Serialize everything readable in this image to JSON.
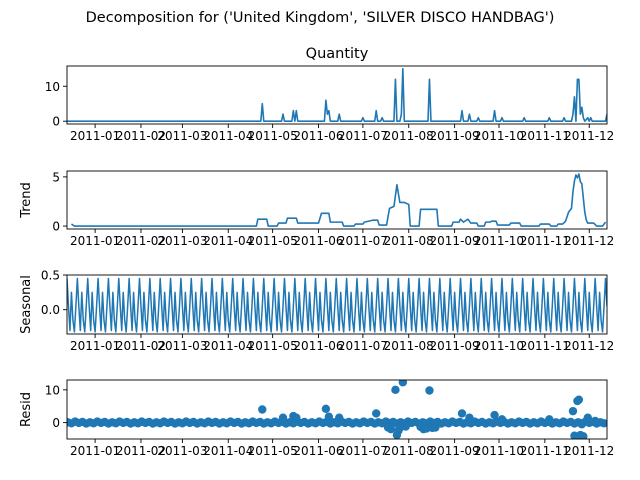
{
  "figure": {
    "suptitle": "Decomposition for ('United Kingdom', 'SILVER DISCO HANDBAG')"
  },
  "chart_data": [
    {
      "type": "line",
      "title": "Quantity",
      "ylabel": "",
      "color": "#1f77b4",
      "xlim": [
        "2010-12-13",
        "2011-12-13"
      ],
      "ylim": [
        -0.8,
        15.8
      ],
      "yticks": [
        0,
        10
      ],
      "xticks": [
        "2011-01",
        "2011-02",
        "2011-03",
        "2011-04",
        "2011-05",
        "2011-06",
        "2011-07",
        "2011-08",
        "2011-09",
        "2011-10",
        "2011-11",
        "2011-12"
      ],
      "points": [
        [
          "2010-12-13",
          0
        ],
        [
          "2011-04-23",
          0
        ],
        [
          "2011-04-24",
          5
        ],
        [
          "2011-04-25",
          0
        ],
        [
          "2011-05-07",
          0
        ],
        [
          "2011-05-08",
          2
        ],
        [
          "2011-05-09",
          0
        ],
        [
          "2011-05-14",
          0
        ],
        [
          "2011-05-15",
          3
        ],
        [
          "2011-05-16",
          0
        ],
        [
          "2011-05-17",
          3
        ],
        [
          "2011-05-18",
          0
        ],
        [
          "2011-06-05",
          0
        ],
        [
          "2011-06-06",
          6
        ],
        [
          "2011-06-07",
          2
        ],
        [
          "2011-06-08",
          3
        ],
        [
          "2011-06-09",
          0
        ],
        [
          "2011-06-14",
          0
        ],
        [
          "2011-06-15",
          2
        ],
        [
          "2011-06-16",
          0
        ],
        [
          "2011-06-30",
          0
        ],
        [
          "2011-07-01",
          1
        ],
        [
          "2011-07-02",
          0
        ],
        [
          "2011-07-09",
          0
        ],
        [
          "2011-07-10",
          3
        ],
        [
          "2011-07-11",
          0
        ],
        [
          "2011-07-13",
          0
        ],
        [
          "2011-07-14",
          1
        ],
        [
          "2011-07-15",
          0
        ],
        [
          "2011-07-22",
          0
        ],
        [
          "2011-07-23",
          12
        ],
        [
          "2011-07-24",
          0
        ],
        [
          "2011-07-26",
          0
        ],
        [
          "2011-07-27",
          2
        ],
        [
          "2011-07-28",
          15
        ],
        [
          "2011-07-29",
          0
        ],
        [
          "2011-08-14",
          0
        ],
        [
          "2011-08-15",
          12
        ],
        [
          "2011-08-16",
          0
        ],
        [
          "2011-09-05",
          0
        ],
        [
          "2011-09-06",
          3
        ],
        [
          "2011-09-07",
          0
        ],
        [
          "2011-09-10",
          0
        ],
        [
          "2011-09-11",
          2
        ],
        [
          "2011-09-12",
          0
        ],
        [
          "2011-09-16",
          0
        ],
        [
          "2011-09-17",
          1
        ],
        [
          "2011-09-18",
          0
        ],
        [
          "2011-09-27",
          0
        ],
        [
          "2011-09-28",
          3
        ],
        [
          "2011-09-29",
          0
        ],
        [
          "2011-10-02",
          0
        ],
        [
          "2011-10-03",
          1
        ],
        [
          "2011-10-04",
          0
        ],
        [
          "2011-10-17",
          0
        ],
        [
          "2011-10-18",
          1
        ],
        [
          "2011-10-19",
          0
        ],
        [
          "2011-11-03",
          0
        ],
        [
          "2011-11-04",
          1
        ],
        [
          "2011-11-05",
          0
        ],
        [
          "2011-11-13",
          0
        ],
        [
          "2011-11-14",
          1
        ],
        [
          "2011-11-15",
          0
        ],
        [
          "2011-11-19",
          0
        ],
        [
          "2011-11-20",
          2
        ],
        [
          "2011-11-21",
          7
        ],
        [
          "2011-11-22",
          0
        ],
        [
          "2011-11-23",
          12
        ],
        [
          "2011-11-24",
          12
        ],
        [
          "2011-11-25",
          2
        ],
        [
          "2011-11-26",
          4
        ],
        [
          "2011-11-27",
          1
        ],
        [
          "2011-11-28",
          0
        ],
        [
          "2011-11-30",
          1
        ],
        [
          "2011-12-01",
          0
        ],
        [
          "2011-12-02",
          1
        ],
        [
          "2011-12-03",
          0
        ],
        [
          "2011-12-12",
          0
        ],
        [
          "2011-12-13",
          2
        ]
      ]
    },
    {
      "type": "line",
      "title": "",
      "ylabel": "Trend",
      "color": "#1f77b4",
      "xlim": [
        "2010-12-13",
        "2011-12-13"
      ],
      "ylim": [
        -0.3,
        5.6
      ],
      "yticks": [
        0,
        5
      ],
      "xticks": [
        "2011-01",
        "2011-02",
        "2011-03",
        "2011-04",
        "2011-05",
        "2011-06",
        "2011-07",
        "2011-08",
        "2011-09",
        "2011-10",
        "2011-11",
        "2011-12"
      ],
      "points": [
        [
          "2010-12-16",
          0.2
        ],
        [
          "2010-12-18",
          0
        ],
        [
          "2011-04-20",
          0
        ],
        [
          "2011-04-21",
          0.7
        ],
        [
          "2011-04-27",
          0.7
        ],
        [
          "2011-04-28",
          0
        ],
        [
          "2011-05-04",
          0
        ],
        [
          "2011-05-05",
          0.3
        ],
        [
          "2011-05-10",
          0.3
        ],
        [
          "2011-05-11",
          0.8
        ],
        [
          "2011-05-17",
          0.8
        ],
        [
          "2011-05-18",
          0.3
        ],
        [
          "2011-06-01",
          0.3
        ],
        [
          "2011-06-03",
          1.3
        ],
        [
          "2011-06-08",
          1.3
        ],
        [
          "2011-06-09",
          0.4
        ],
        [
          "2011-06-17",
          0.4
        ],
        [
          "2011-06-18",
          0
        ],
        [
          "2011-06-25",
          0
        ],
        [
          "2011-06-26",
          0.2
        ],
        [
          "2011-07-01",
          0.2
        ],
        [
          "2011-07-02",
          0.4
        ],
        [
          "2011-07-08",
          0.6
        ],
        [
          "2011-07-11",
          0.6
        ],
        [
          "2011-07-12",
          0.1
        ],
        [
          "2011-07-17",
          0.1
        ],
        [
          "2011-07-19",
          1.8
        ],
        [
          "2011-07-22",
          2.0
        ],
        [
          "2011-07-24",
          4.2
        ],
        [
          "2011-07-26",
          2.4
        ],
        [
          "2011-07-29",
          2.4
        ],
        [
          "2011-08-01",
          2.2
        ],
        [
          "2011-08-02",
          0
        ],
        [
          "2011-08-08",
          0
        ],
        [
          "2011-08-09",
          1.7
        ],
        [
          "2011-08-20",
          1.7
        ],
        [
          "2011-08-21",
          0
        ],
        [
          "2011-08-30",
          0
        ],
        [
          "2011-08-31",
          0.4
        ],
        [
          "2011-09-04",
          0.4
        ],
        [
          "2011-09-05",
          0.7
        ],
        [
          "2011-09-07",
          0.4
        ],
        [
          "2011-09-10",
          0.7
        ],
        [
          "2011-09-12",
          0.3
        ],
        [
          "2011-09-16",
          0.3
        ],
        [
          "2011-09-17",
          0
        ],
        [
          "2011-09-21",
          0
        ],
        [
          "2011-09-22",
          0.4
        ],
        [
          "2011-09-25",
          0.4
        ],
        [
          "2011-09-26",
          0.5
        ],
        [
          "2011-09-29",
          0.5
        ],
        [
          "2011-09-30",
          0.1
        ],
        [
          "2011-10-08",
          0.1
        ],
        [
          "2011-10-09",
          0.3
        ],
        [
          "2011-10-15",
          0.3
        ],
        [
          "2011-10-16",
          0
        ],
        [
          "2011-10-28",
          0
        ],
        [
          "2011-10-29",
          0.2
        ],
        [
          "2011-11-04",
          0.2
        ],
        [
          "2011-11-05",
          0
        ],
        [
          "2011-11-09",
          0
        ],
        [
          "2011-11-10",
          0.2
        ],
        [
          "2011-11-13",
          0.2
        ],
        [
          "2011-11-15",
          0.5
        ],
        [
          "2011-11-17",
          1.4
        ],
        [
          "2011-11-19",
          1.8
        ],
        [
          "2011-11-20",
          3.5
        ],
        [
          "2011-11-21",
          4.6
        ],
        [
          "2011-11-22",
          5.2
        ],
        [
          "2011-11-23",
          4.9
        ],
        [
          "2011-11-24",
          5.3
        ],
        [
          "2011-11-25",
          4.5
        ],
        [
          "2011-11-26",
          4.3
        ],
        [
          "2011-11-28",
          1.4
        ],
        [
          "2011-11-29",
          0.6
        ],
        [
          "2011-11-30",
          0.3
        ],
        [
          "2011-12-04",
          0.3
        ],
        [
          "2011-12-06",
          0
        ],
        [
          "2011-12-10",
          0
        ],
        [
          "2011-12-12",
          0.4
        ]
      ]
    },
    {
      "type": "line",
      "title": "",
      "ylabel": "Seasonal",
      "color": "#1f77b4",
      "xlim": [
        "2010-12-13",
        "2011-12-13"
      ],
      "ylim": [
        -0.35,
        0.5
      ],
      "yticks": [
        -0.0,
        0.5
      ],
      "ytick_labels": [
        "0.0",
        "0.5"
      ],
      "xticks": [
        "2011-01",
        "2011-02",
        "2011-03",
        "2011-04",
        "2011-05",
        "2011-06",
        "2011-07",
        "2011-08",
        "2011-09",
        "2011-10",
        "2011-11",
        "2011-12"
      ],
      "period_days": 7,
      "weekly_pattern": [
        0.45,
        0.05,
        -0.3,
        0.25,
        -0.15,
        -0.32,
        0.05
      ],
      "x_start": "2010-12-13",
      "x_end": "2011-12-13"
    },
    {
      "type": "scatter",
      "title": "",
      "ylabel": "Resid",
      "color": "#1f77b4",
      "xlim": [
        "2010-12-13",
        "2011-12-13"
      ],
      "ylim": [
        -5,
        13
      ],
      "yticks": [
        0,
        10
      ],
      "xticks": [
        "2011-01",
        "2011-02",
        "2011-03",
        "2011-04",
        "2011-05",
        "2011-06",
        "2011-07",
        "2011-08",
        "2011-09",
        "2011-10",
        "2011-11",
        "2011-12"
      ],
      "baseline": {
        "step_days": 2.5,
        "values": [
          0.1,
          -0.2,
          0.3,
          -0.1,
          0.2,
          -0.3
        ]
      },
      "points": [
        [
          "2011-04-24",
          4
        ],
        [
          "2011-05-08",
          1.5
        ],
        [
          "2011-05-15",
          2
        ],
        [
          "2011-05-17",
          1.5
        ],
        [
          "2011-06-06",
          4.2
        ],
        [
          "2011-06-08",
          1.8
        ],
        [
          "2011-06-15",
          1.5
        ],
        [
          "2011-07-10",
          2.8
        ],
        [
          "2011-07-18",
          -1.5
        ],
        [
          "2011-07-20",
          -2
        ],
        [
          "2011-07-23",
          10
        ],
        [
          "2011-07-24",
          -3.8
        ],
        [
          "2011-07-25",
          -2.5
        ],
        [
          "2011-07-26",
          -1.6
        ],
        [
          "2011-07-28",
          12.3
        ],
        [
          "2011-07-30",
          -1.2
        ],
        [
          "2011-08-09",
          -1.3
        ],
        [
          "2011-08-11",
          -2
        ],
        [
          "2011-08-13",
          -1.8
        ],
        [
          "2011-08-15",
          9.8
        ],
        [
          "2011-08-17",
          -1.6
        ],
        [
          "2011-08-19",
          -1.5
        ],
        [
          "2011-09-06",
          2.8
        ],
        [
          "2011-09-11",
          1.5
        ],
        [
          "2011-09-28",
          2.3
        ],
        [
          "2011-10-03",
          1
        ],
        [
          "2011-11-04",
          1
        ],
        [
          "2011-11-20",
          3.5
        ],
        [
          "2011-11-21",
          -4
        ],
        [
          "2011-11-22",
          -4.5
        ],
        [
          "2011-11-23",
          6.6
        ],
        [
          "2011-11-24",
          7
        ],
        [
          "2011-11-25",
          -3.8
        ],
        [
          "2011-11-26",
          -0.5
        ],
        [
          "2011-11-27",
          -4.2
        ],
        [
          "2011-11-30",
          1.5
        ],
        [
          "2011-12-05",
          0.5
        ]
      ]
    }
  ]
}
